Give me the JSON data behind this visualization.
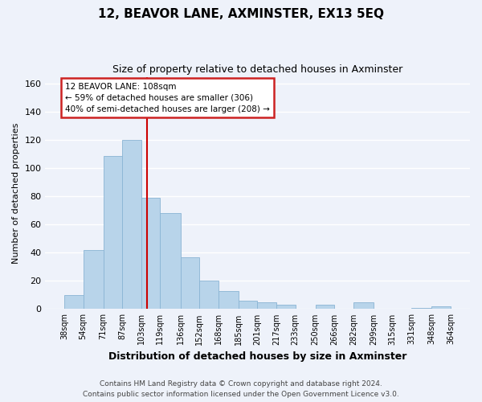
{
  "title": "12, BEAVOR LANE, AXMINSTER, EX13 5EQ",
  "subtitle": "Size of property relative to detached houses in Axminster",
  "xlabel": "Distribution of detached houses by size in Axminster",
  "ylabel": "Number of detached properties",
  "bar_color": "#b8d4ea",
  "bar_edge_color": "#8ab4d4",
  "background_color": "#eef2fa",
  "grid_color": "white",
  "vline_x": 108,
  "vline_color": "#cc0000",
  "annotation_title": "12 BEAVOR LANE: 108sqm",
  "annotation_line1": "← 59% of detached houses are smaller (306)",
  "annotation_line2": "40% of semi-detached houses are larger (208) →",
  "annotation_box_color": "white",
  "annotation_box_edge": "#cc2222",
  "footer1": "Contains HM Land Registry data © Crown copyright and database right 2024.",
  "footer2": "Contains public sector information licensed under the Open Government Licence v3.0.",
  "bins": [
    38,
    54,
    71,
    87,
    103,
    119,
    136,
    152,
    168,
    185,
    201,
    217,
    233,
    250,
    266,
    282,
    299,
    315,
    331,
    348,
    364
  ],
  "counts": [
    10,
    42,
    109,
    120,
    79,
    68,
    37,
    20,
    13,
    6,
    5,
    3,
    0,
    3,
    0,
    5,
    0,
    0,
    1,
    2
  ],
  "ylim": [
    0,
    165
  ],
  "yticks": [
    0,
    20,
    40,
    60,
    80,
    100,
    120,
    140,
    160
  ],
  "tick_labels": [
    "38sqm",
    "54sqm",
    "71sqm",
    "87sqm",
    "103sqm",
    "119sqm",
    "136sqm",
    "152sqm",
    "168sqm",
    "185sqm",
    "201sqm",
    "217sqm",
    "233sqm",
    "250sqm",
    "266sqm",
    "282sqm",
    "299sqm",
    "315sqm",
    "331sqm",
    "348sqm",
    "364sqm"
  ]
}
